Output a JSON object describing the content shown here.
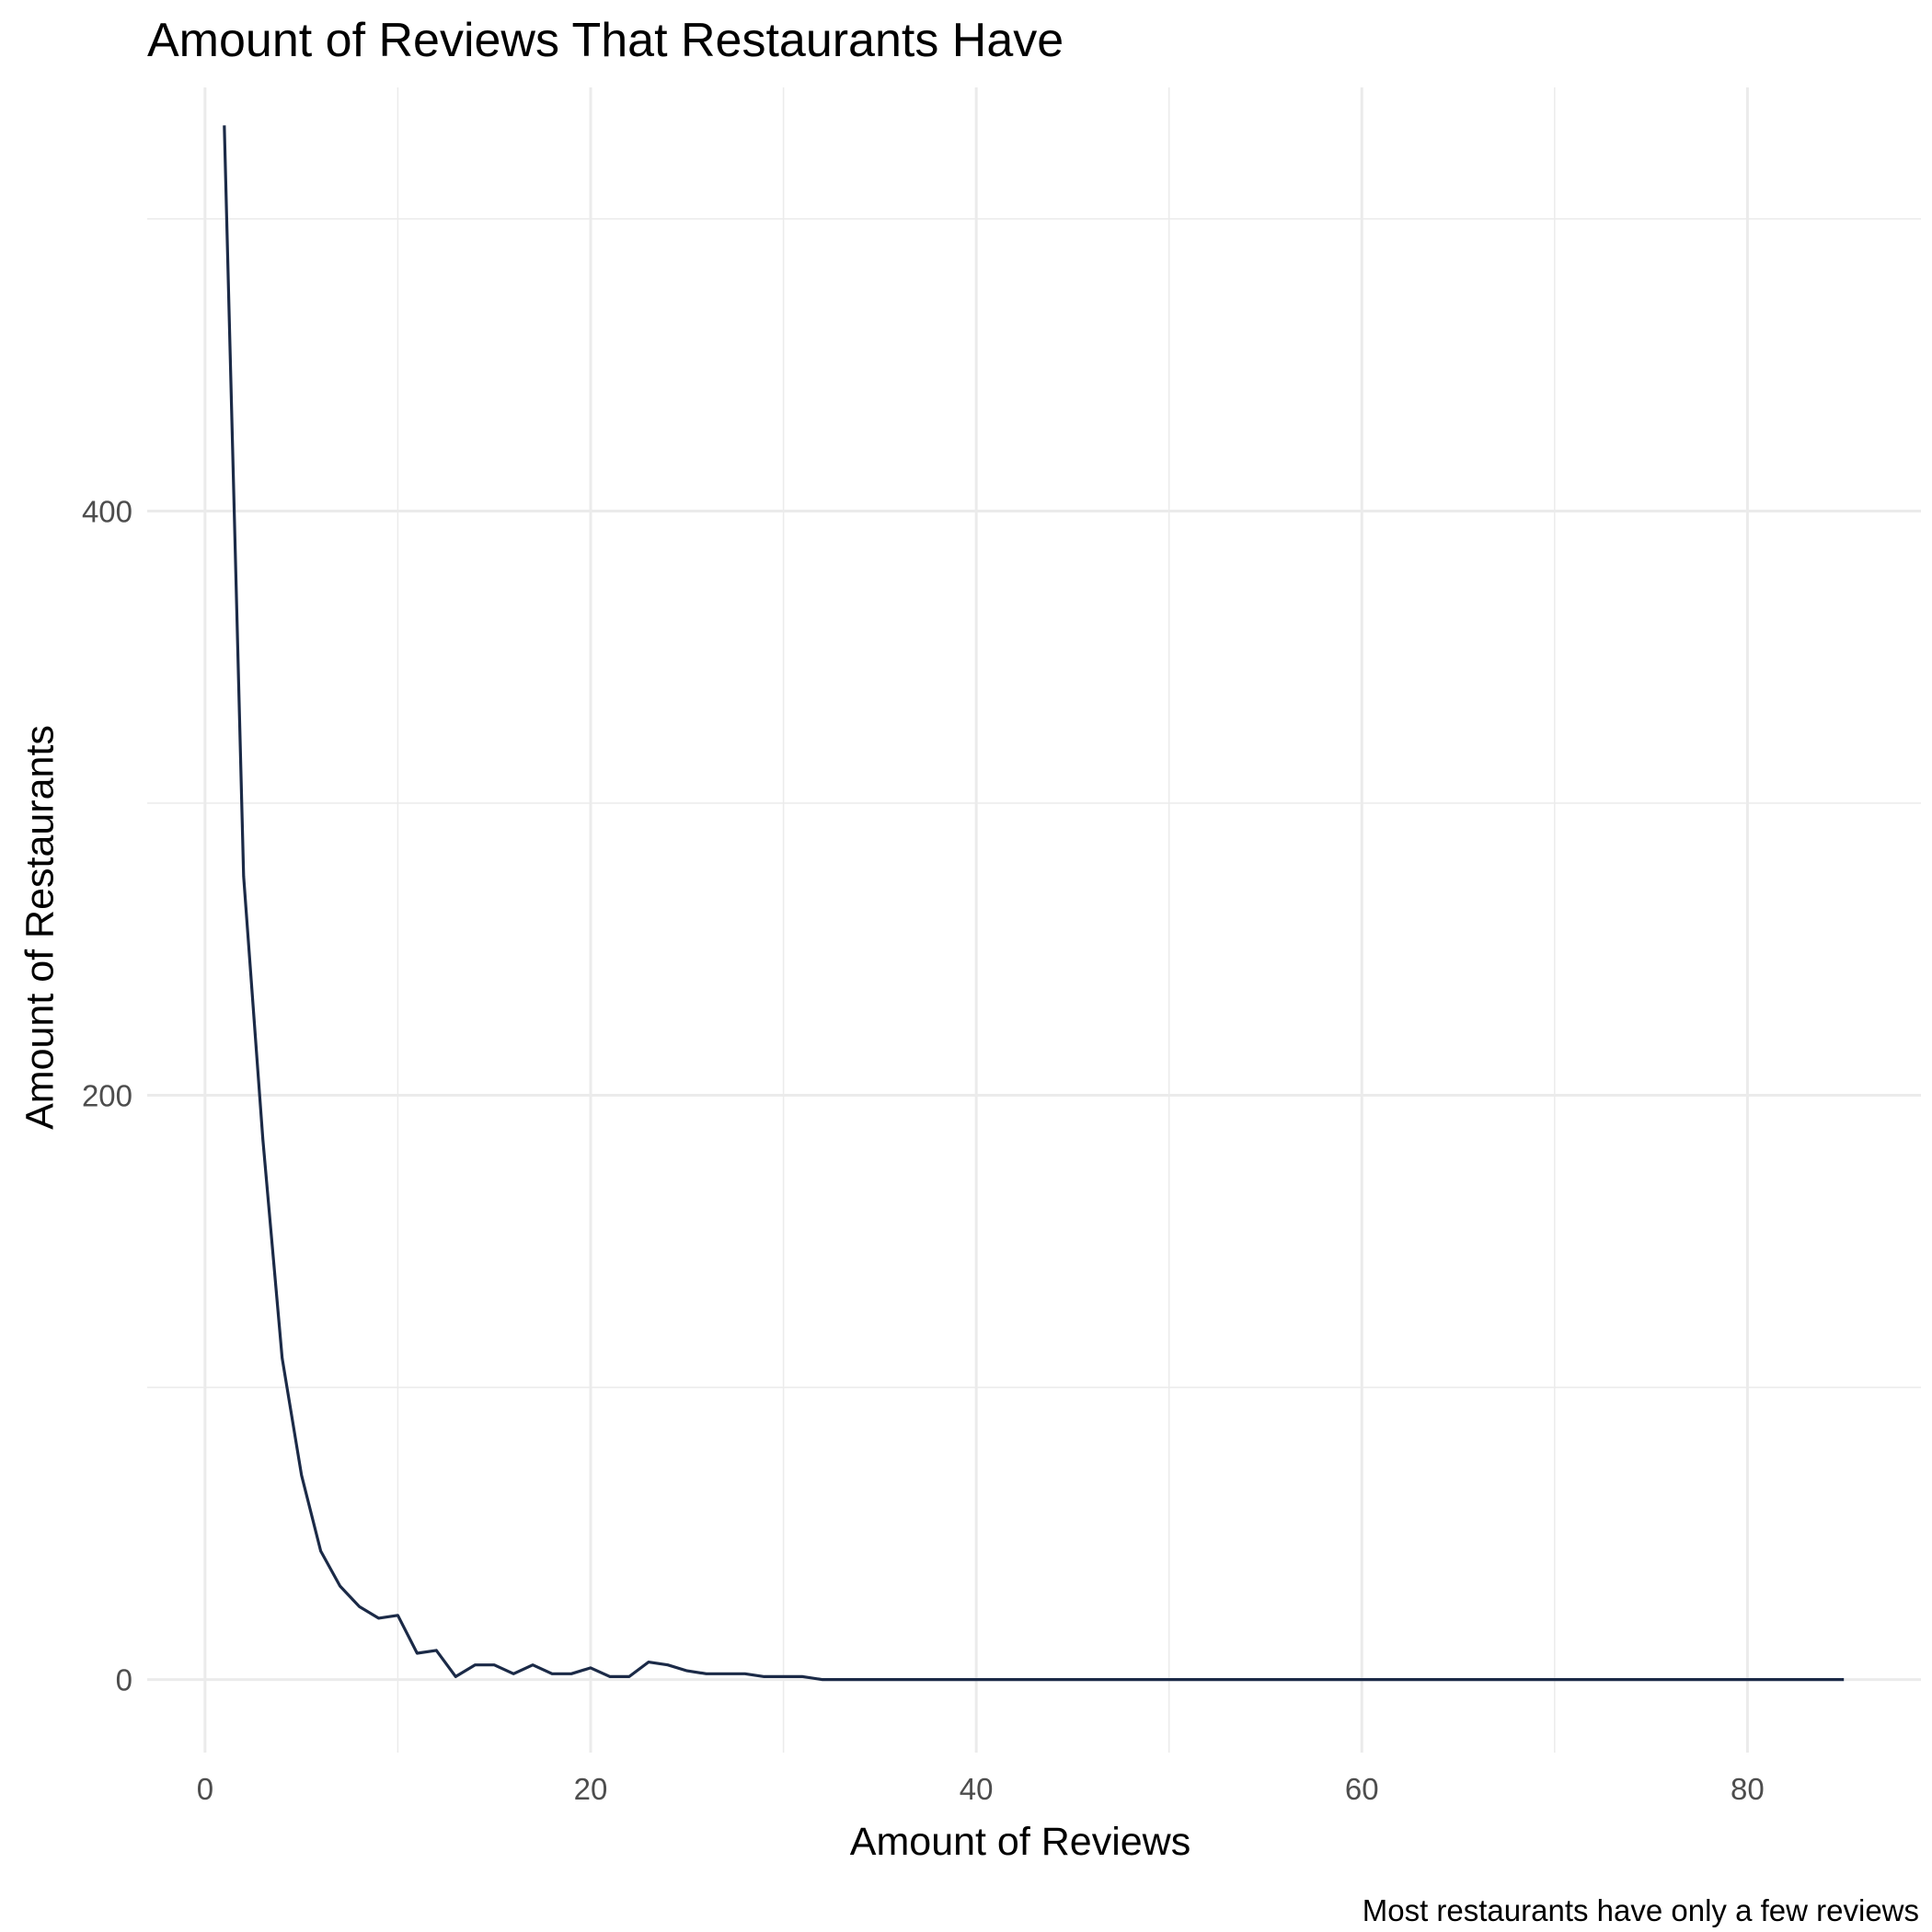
{
  "chart_data": {
    "type": "line",
    "title": "Amount of Reviews That Restaurants Have",
    "xlabel": "Amount of Reviews",
    "ylabel": "Amount of Restaurants",
    "caption": "Most restaurants have only a few reviews",
    "xlim": [
      -3,
      89
    ],
    "ylim": [
      -25,
      545
    ],
    "x_ticks": [
      0,
      20,
      40,
      60,
      80
    ],
    "y_ticks": [
      0,
      200,
      400
    ],
    "grid": true,
    "line_color": "#1b2a47",
    "grid_color": "#ebebeb",
    "x": [
      1,
      2,
      3,
      4,
      5,
      6,
      7,
      8,
      9,
      10,
      11,
      12,
      13,
      14,
      15,
      16,
      17,
      18,
      19,
      20,
      21,
      22,
      23,
      24,
      25,
      26,
      27,
      28,
      29,
      30,
      31,
      32,
      33,
      35,
      40,
      45,
      50,
      55,
      60,
      65,
      70,
      75,
      80,
      85
    ],
    "y": [
      532,
      275,
      185,
      110,
      70,
      44,
      32,
      25,
      21,
      22,
      9,
      10,
      1,
      5,
      5,
      2,
      5,
      2,
      2,
      4,
      1,
      1,
      6,
      5,
      3,
      2,
      2,
      2,
      1,
      1,
      1,
      0,
      0,
      0,
      0,
      0,
      0,
      0,
      0,
      0,
      0,
      0,
      0,
      0
    ]
  }
}
